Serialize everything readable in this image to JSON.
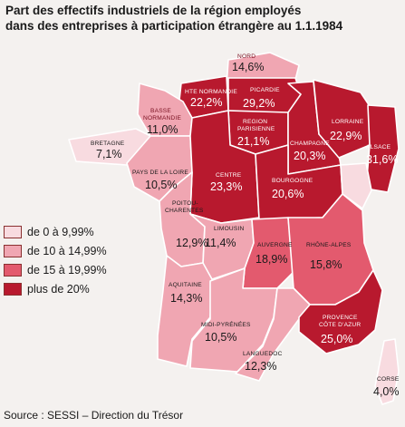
{
  "title": {
    "line1": "Part des effectifs industriels de la région employés",
    "line2": "dans des entreprises à participation étrangère au 1.1.1984"
  },
  "colors": {
    "cat1": "#f8dbe0",
    "cat2": "#f0a6b2",
    "cat3": "#e35a6e",
    "cat4": "#b8192e",
    "border": "#ffffff"
  },
  "legend": [
    {
      "label": "de 0 à 9,99%",
      "category": "cat1"
    },
    {
      "label": "de 10 à 14,99%",
      "category": "cat2"
    },
    {
      "label": "de 15 à 19,99%",
      "category": "cat3"
    },
    {
      "label": "plus de 20%",
      "category": "cat4"
    }
  ],
  "regions": {
    "nord": {
      "name": "NORD",
      "value": "14,6%",
      "category": "cat2"
    },
    "haute_normandie": {
      "name": "HTE NORMANDIE",
      "value": "22,2%",
      "category": "cat4"
    },
    "picardie": {
      "name": "PICARDIE",
      "value": "29,2%",
      "category": "cat4"
    },
    "basse_normandie": {
      "name1": "BASSE",
      "name2": "NORMANDIE",
      "value": "11,0%",
      "category": "cat2"
    },
    "region_parisienne": {
      "name1": "REGION",
      "name2": "PARISIENNE",
      "value": "21,1%",
      "category": "cat4"
    },
    "champagne": {
      "name": "CHAMPAGNE",
      "value": "20,3%",
      "category": "cat4"
    },
    "lorraine": {
      "name": "LORRAINE",
      "value": "22,9%",
      "category": "cat4"
    },
    "alsace": {
      "name": "ALSACE",
      "value": "31,6%",
      "category": "cat4"
    },
    "bretagne": {
      "name": "BRETAGNE",
      "value": "7,1%",
      "category": "cat1"
    },
    "pays_de_la_loire": {
      "name": "PAYS DE LA LOIRE",
      "value": "10,5%",
      "category": "cat2"
    },
    "centre": {
      "name": "CENTRE",
      "value": "23,3%",
      "category": "cat4"
    },
    "bourgogne": {
      "name": "BOURGOGNE",
      "value": "20,6%",
      "category": "cat4"
    },
    "franche_comte": {
      "category": "cat1"
    },
    "poitou_charentes": {
      "name1": "POITOU-",
      "name2": "CHARENTES",
      "value": "12,9%",
      "category": "cat2"
    },
    "limousin": {
      "name": "LIMOUSIN",
      "value": "11,4%",
      "category": "cat2"
    },
    "auvergne": {
      "name": "AUVERGNE",
      "value": "18,9%",
      "category": "cat3"
    },
    "rhone_alpes": {
      "name": "RHÔNE-ALPES",
      "value": "15,8%",
      "category": "cat3"
    },
    "aquitaine": {
      "name": "AQUITAINE",
      "value": "14,3%",
      "category": "cat2"
    },
    "midi_pyrenees": {
      "name": "MIDI-PYRÉNÉES",
      "value": "10,5%",
      "category": "cat2"
    },
    "languedoc": {
      "name": "LANGUEDOC",
      "value": "12,3%",
      "category": "cat2"
    },
    "provence": {
      "name1": "PROVENCE",
      "name2": "CÔTE D'AZUR",
      "value": "25,0%",
      "category": "cat4"
    },
    "corse": {
      "name": "CORSE",
      "value": "4,0%",
      "category": "cat1"
    }
  },
  "source": "Source : SESSI – Direction du Trésor"
}
